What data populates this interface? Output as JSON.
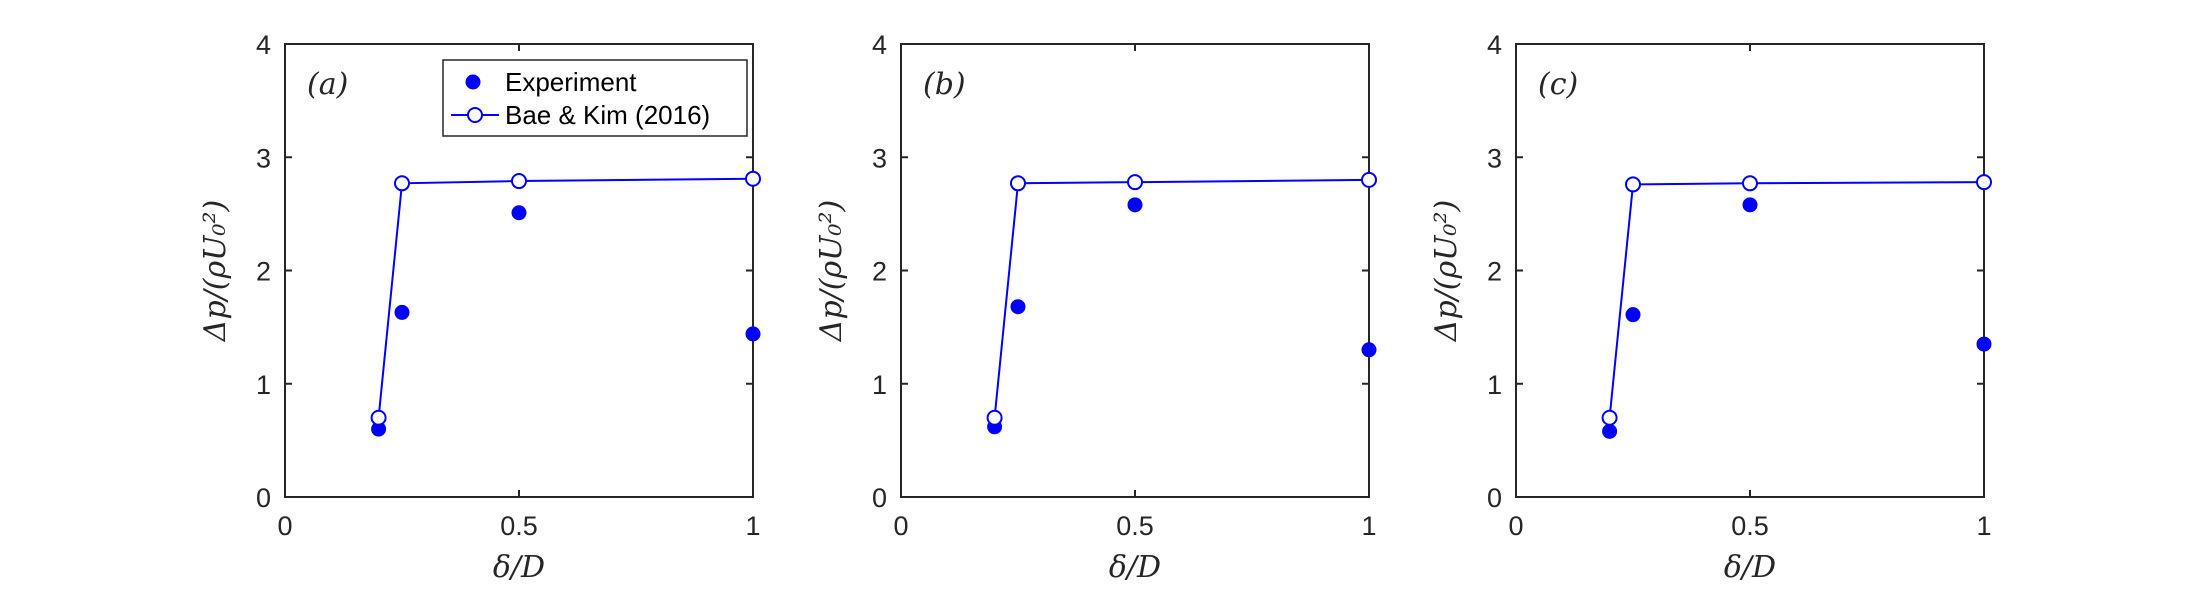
{
  "chart_data": [
    {
      "type": "scatter",
      "panel_label": "(a)",
      "xlabel": "δ/D",
      "ylabel": "Δp/(ρU₀²)",
      "xlim": [
        0,
        1
      ],
      "ylim": [
        0,
        4
      ],
      "xticks": [
        0,
        0.5,
        1
      ],
      "xtick_labels": [
        "0",
        "0.5",
        "1"
      ],
      "yticks": [
        0,
        1,
        2,
        3,
        4
      ],
      "ytick_labels": [
        "0",
        "1",
        "2",
        "3",
        "4"
      ],
      "grid": false,
      "legend": {
        "position": "top-right",
        "entries": [
          "Experiment",
          "Bae & Kim (2016)"
        ]
      },
      "series": [
        {
          "name": "Experiment",
          "style": "filled-markers",
          "x": [
            0.2,
            0.25,
            0.5,
            1.0
          ],
          "y": [
            0.6,
            1.63,
            2.51,
            1.44
          ]
        },
        {
          "name": "Bae & Kim (2016)",
          "style": "line-open-markers",
          "x": [
            0.2,
            0.25,
            0.5,
            1.0
          ],
          "y": [
            0.7,
            2.77,
            2.79,
            2.81
          ]
        }
      ]
    },
    {
      "type": "scatter",
      "panel_label": "(b)",
      "xlabel": "δ/D",
      "ylabel": "Δp/(ρU₀²)",
      "xlim": [
        0,
        1
      ],
      "ylim": [
        0,
        4
      ],
      "xticks": [
        0,
        0.5,
        1
      ],
      "xtick_labels": [
        "0",
        "0.5",
        "1"
      ],
      "yticks": [
        0,
        1,
        2,
        3,
        4
      ],
      "ytick_labels": [
        "0",
        "1",
        "2",
        "3",
        "4"
      ],
      "grid": false,
      "series": [
        {
          "name": "Experiment",
          "style": "filled-markers",
          "x": [
            0.2,
            0.25,
            0.5,
            1.0
          ],
          "y": [
            0.62,
            1.68,
            2.58,
            1.3
          ]
        },
        {
          "name": "Bae & Kim (2016)",
          "style": "line-open-markers",
          "x": [
            0.2,
            0.25,
            0.5,
            1.0
          ],
          "y": [
            0.7,
            2.77,
            2.78,
            2.8
          ]
        }
      ]
    },
    {
      "type": "scatter",
      "panel_label": "(c)",
      "xlabel": "δ/D",
      "ylabel": "Δp/(ρU₀²)",
      "xlim": [
        0,
        1
      ],
      "ylim": [
        0,
        4
      ],
      "xticks": [
        0,
        0.5,
        1
      ],
      "xtick_labels": [
        "0",
        "0.5",
        "1"
      ],
      "yticks": [
        0,
        1,
        2,
        3,
        4
      ],
      "ytick_labels": [
        "0",
        "1",
        "2",
        "3",
        "4"
      ],
      "grid": false,
      "series": [
        {
          "name": "Experiment",
          "style": "filled-markers",
          "x": [
            0.2,
            0.25,
            0.5,
            1.0
          ],
          "y": [
            0.58,
            1.61,
            2.58,
            1.35
          ]
        },
        {
          "name": "Bae & Kim (2016)",
          "style": "line-open-markers",
          "x": [
            0.2,
            0.25,
            0.5,
            1.0
          ],
          "y": [
            0.7,
            2.76,
            2.77,
            2.78
          ]
        }
      ]
    }
  ],
  "colors": {
    "series": "#0000ff",
    "axes": "#262626"
  }
}
